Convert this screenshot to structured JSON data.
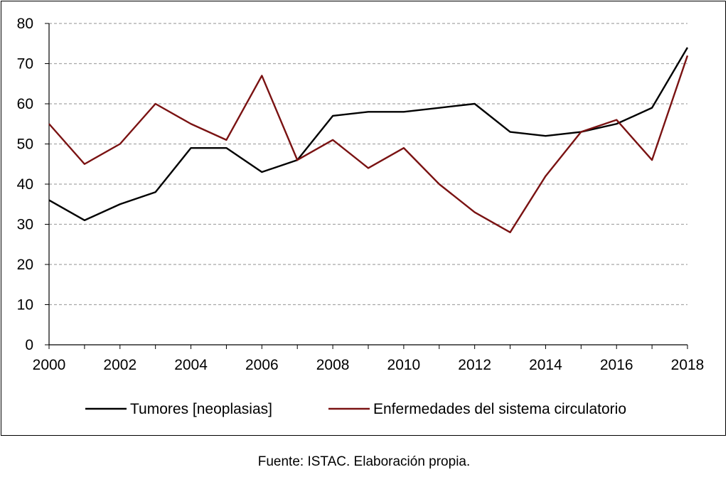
{
  "chart_data": {
    "type": "line",
    "x": [
      2000,
      2001,
      2002,
      2003,
      2004,
      2005,
      2006,
      2007,
      2008,
      2009,
      2010,
      2011,
      2012,
      2013,
      2014,
      2015,
      2016,
      2017,
      2018
    ],
    "x_tick_labels": [
      "2000",
      "2002",
      "2004",
      "2006",
      "2008",
      "2010",
      "2012",
      "2014",
      "2016",
      "2018"
    ],
    "y_tick_labels": [
      "0",
      "10",
      "20",
      "30",
      "40",
      "50",
      "60",
      "70",
      "80"
    ],
    "xlim": [
      2000,
      2018
    ],
    "ylim": [
      0,
      80
    ],
    "grid": "horizontal-dashed",
    "legend_position": "bottom",
    "series": [
      {
        "name": "Tumores [neoplasias]",
        "color": "#000000",
        "values": [
          36,
          31,
          35,
          38,
          49,
          49,
          43,
          46,
          57,
          58,
          58,
          59,
          60,
          53,
          52,
          53,
          55,
          59,
          74
        ]
      },
      {
        "name": "Enfermedades del sistema circulatorio",
        "color": "#7a1212",
        "values": [
          55,
          45,
          50,
          60,
          55,
          51,
          67,
          46,
          51,
          44,
          49,
          40,
          33,
          28,
          42,
          53,
          56,
          46,
          72
        ]
      }
    ]
  },
  "source_note": "Fuente: ISTAC. Elaboración propia."
}
